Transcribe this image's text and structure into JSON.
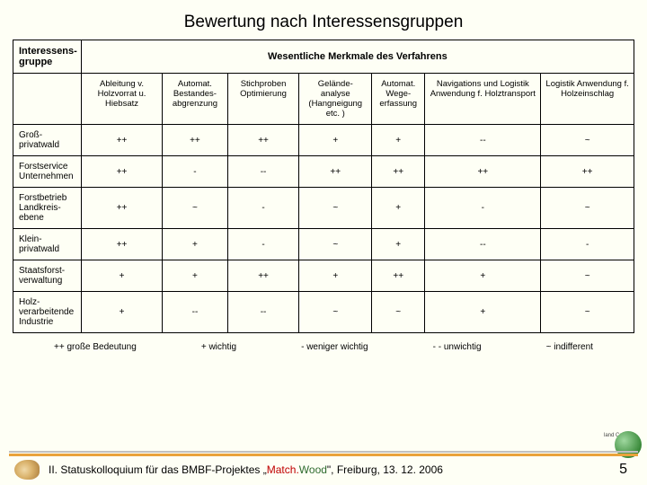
{
  "title": "Bewertung nach Interessensgruppen",
  "header": {
    "left": "Interessens-gruppe",
    "span": "Wesentliche Merkmale des Verfahrens"
  },
  "columns": [
    "Ableitung v. Holzvorrat u. Hiebsatz",
    "Automat. Bestandes-abgrenzung",
    "Stichproben Optimierung",
    "Gelände-analyse (Hangneigung etc. )",
    "Automat. Wege-erfassung",
    "Navigations und Logistik Anwendung f. Holztransport",
    "Logistik Anwendung f. Holzeinschlag"
  ],
  "rows": [
    {
      "label": "Groß-privatwald",
      "cells": [
        "++",
        "++",
        "++",
        "+",
        "+",
        "--",
        "~"
      ]
    },
    {
      "label": "Forstservice Unternehmen",
      "cells": [
        "++",
        "-",
        "--",
        "++",
        "++",
        "++",
        "++"
      ]
    },
    {
      "label": "Forstbetrieb Landkreis-ebene",
      "cells": [
        "++",
        "~",
        "-",
        "~",
        "+",
        "-",
        "~"
      ]
    },
    {
      "label": "Klein-privatwald",
      "cells": [
        "++",
        "+",
        "-",
        "~",
        "+",
        "--",
        "-"
      ]
    },
    {
      "label": "Staatsforst-verwaltung",
      "cells": [
        "+",
        "+",
        "++",
        "+",
        "++",
        "+",
        "~"
      ]
    },
    {
      "label": "Holz-verarbeitende Industrie",
      "cells": [
        "+",
        "--",
        "--",
        "~",
        "~",
        "+",
        "~"
      ]
    }
  ],
  "legend": {
    "a": "++ große Bedeutung",
    "b": "+ wichtig",
    "c": "- weniger wichtig",
    "d": "- - unwichtig",
    "e": "~ indifferent"
  },
  "footer": {
    "prefix": "II. Statuskolloquium für das BMBF-Projektes „",
    "brand1": "Match.",
    "brand2": "Wood",
    "suffix": "\", Freiburg, 13. 12. 2006"
  },
  "page": "5",
  "logo_text": "land\nConsult"
}
